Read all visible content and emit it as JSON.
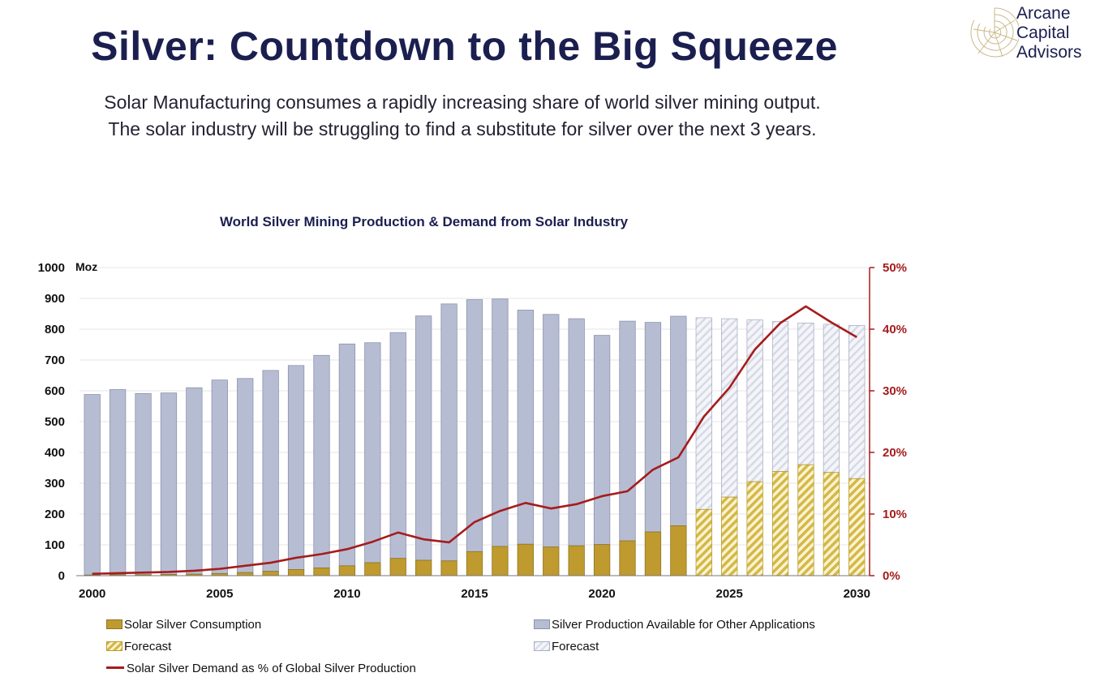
{
  "header": {
    "title": "Silver: Countdown to the Big Squeeze",
    "subtitle_line1": "Solar Manufacturing consumes a rapidly increasing share of world silver mining output.",
    "subtitle_line2": "The solar industry will be struggling to find a substitute for silver over the next 3 years."
  },
  "logo": {
    "line1": "Arcane",
    "line2": "Capital",
    "line3": "Advisors",
    "icon": "nautilus-shell-icon"
  },
  "colors": {
    "title": "#1b1f4f",
    "other_applications": "#b6bdd3",
    "other_forecast": "#e4e7f0",
    "solar": "#bf9a2e",
    "solar_forecast_stripe": "#d4b847",
    "line": "#a51c1c"
  },
  "legend": {
    "solar": "Solar Silver Consumption",
    "solar_forecast": "Forecast",
    "other": "Silver Production Available for Other Applications",
    "other_forecast": "Forecast",
    "line": "Solar Silver Demand as % of Global Silver Production"
  },
  "chart_data": {
    "type": "bar",
    "title": "World Silver Mining Production & Demand from Solar Industry",
    "ylabel_left": "Moz",
    "ylim_left": [
      0,
      1000
    ],
    "yticks_left": [
      "0",
      "100",
      "200",
      "300",
      "400",
      "500",
      "600",
      "700",
      "800",
      "900",
      "1000"
    ],
    "ylim_right": [
      0,
      0.5
    ],
    "yticks_right": [
      "0%",
      "10%",
      "20%",
      "30%",
      "40%",
      "50%"
    ],
    "x": [
      2000,
      2001,
      2002,
      2003,
      2004,
      2005,
      2006,
      2007,
      2008,
      2009,
      2010,
      2011,
      2012,
      2013,
      2014,
      2015,
      2016,
      2017,
      2018,
      2019,
      2020,
      2021,
      2022,
      2023,
      2024,
      2025,
      2026,
      2027,
      2028,
      2029,
      2030
    ],
    "xtick_labels": [
      "2000",
      "2005",
      "2010",
      "2015",
      "2020",
      "2025",
      "2030"
    ],
    "forecast_from": 2024,
    "stacked": true,
    "series": [
      {
        "name": "Solar Silver Consumption",
        "stack": "bottom",
        "values": [
          2,
          3,
          3,
          4,
          5,
          7,
          10,
          14,
          20,
          25,
          32,
          42,
          56,
          50,
          48,
          78,
          95,
          102,
          93,
          97,
          101,
          113,
          142,
          162,
          215,
          255,
          305,
          338,
          360,
          335,
          315
        ]
      },
      {
        "name": "Silver Production Available for Other Applications",
        "stack": "top",
        "values": [
          586,
          601,
          588,
          589,
          605,
          628,
          630,
          652,
          662,
          690,
          720,
          714,
          733,
          793,
          834,
          818,
          803,
          760,
          755,
          737,
          679,
          713,
          680,
          680,
          622,
          579,
          525,
          487,
          460,
          481,
          497
        ]
      },
      {
        "name": "Solar Silver Demand as % of Global Silver Production",
        "axis": "right",
        "type": "line",
        "values": [
          0.003,
          0.004,
          0.005,
          0.006,
          0.008,
          0.011,
          0.016,
          0.021,
          0.029,
          0.035,
          0.043,
          0.055,
          0.07,
          0.059,
          0.054,
          0.087,
          0.105,
          0.118,
          0.109,
          0.116,
          0.129,
          0.137,
          0.172,
          0.192,
          0.258,
          0.305,
          0.367,
          0.41,
          0.437,
          0.411,
          0.387
        ]
      }
    ],
    "grid": true,
    "legend_position": "bottom"
  }
}
